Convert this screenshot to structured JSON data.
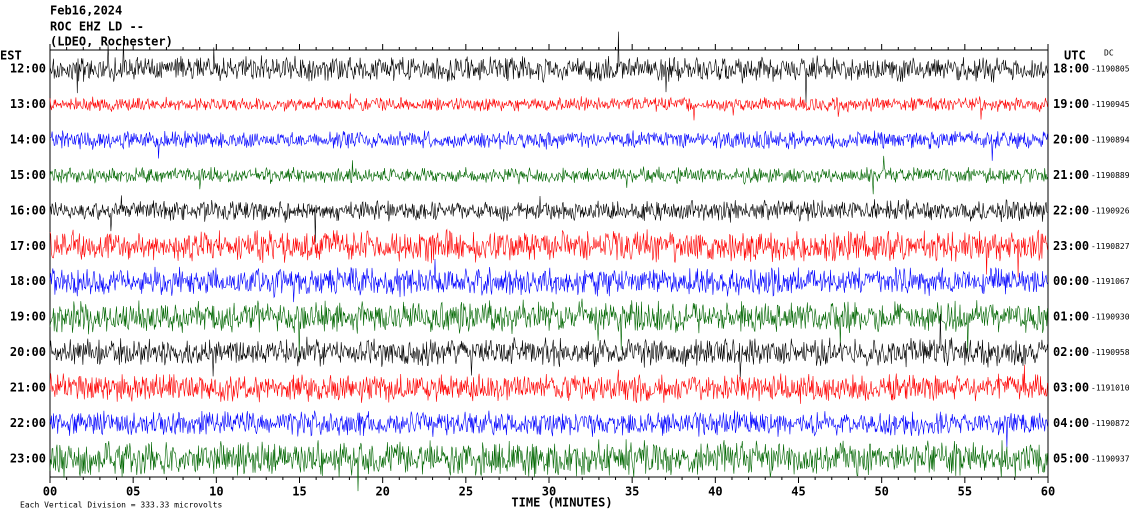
{
  "header": {
    "lines": [
      "Feb16,2024",
      "ROC EHZ LD --",
      "(LDEO, Rochester)"
    ]
  },
  "left_axis": {
    "title": "EST",
    "labels": [
      "12:00",
      "13:00",
      "14:00",
      "15:00",
      "16:00",
      "17:00",
      "18:00",
      "19:00",
      "20:00",
      "21:00",
      "22:00",
      "23:00"
    ]
  },
  "right_axis": {
    "title": "UTC",
    "subtitle": "DC",
    "labels": [
      "18:00",
      "19:00",
      "20:00",
      "21:00",
      "22:00",
      "23:00",
      "00:00",
      "01:00",
      "02:00",
      "03:00",
      "04:00",
      "05:00"
    ],
    "offsets": [
      "-1190805",
      "-1190945",
      "-1190894",
      "-1190889",
      "-1190926",
      "-1190827",
      "-1191067",
      "-1190930",
      "-1190958",
      "-1191010",
      "-1190872",
      "-1190937"
    ]
  },
  "x_axis": {
    "title": "TIME (MINUTES)",
    "ticks": [
      "00",
      "05",
      "10",
      "15",
      "20",
      "25",
      "30",
      "35",
      "40",
      "45",
      "50",
      "55",
      "60"
    ]
  },
  "footer": "Each Vertical Division = 333.33 microvolts"
}
